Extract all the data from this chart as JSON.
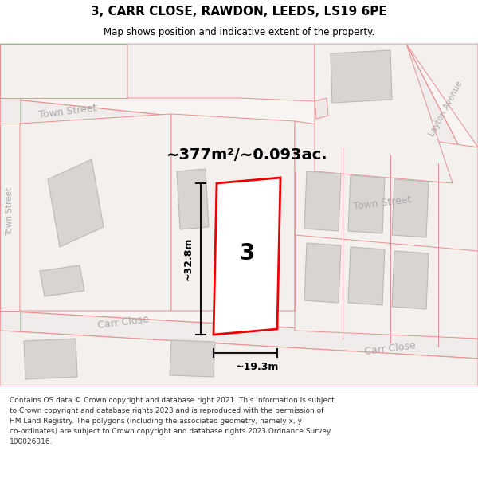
{
  "title_line1": "3, CARR CLOSE, RAWDON, LEEDS, LS19 6PE",
  "title_line2": "Map shows position and indicative extent of the property.",
  "footer_text": "Contains OS data © Crown copyright and database right 2021. This information is subject\nto Crown copyright and database rights 2023 and is reproduced with the permission of\nHM Land Registry. The polygons (including the associated geometry, namely x, y\nco-ordinates) are subject to Crown copyright and database rights 2023 Ordnance Survey\n100026316.",
  "area_label": "~377m²/~0.093ac.",
  "width_label": "~19.3m",
  "height_label": "~32.8m",
  "number_label": "3",
  "map_bg": "#f7f4f2",
  "road_pink": "#e89090",
  "road_fill": "#ede9e7",
  "block_fill": "#f0eceb",
  "building_fill": "#d8d4d2",
  "building_stroke": "#bcb8b5",
  "highlight_stroke": "#ee0000",
  "highlight_fill": "#ffffff",
  "dim_color": "#111111",
  "label_gray": "#aaaaaa",
  "white": "#ffffff",
  "title_border": "#dddddd",
  "footer_color": "#333333",
  "street_label_color": "#aaaaaa",
  "layton_label_color": "#aaaaaa"
}
